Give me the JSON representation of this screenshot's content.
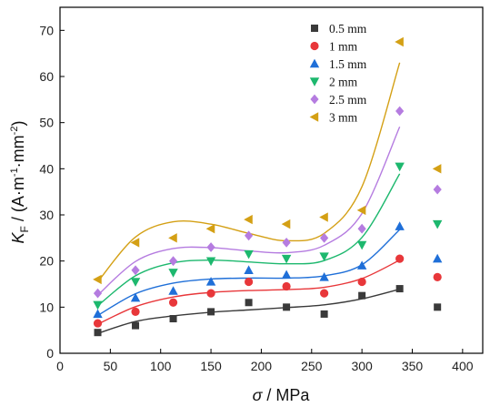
{
  "chart_data": {
    "type": "scatter",
    "xlabel_symbol": "σ",
    "xlabel_unit": " / MPa",
    "ylabel_symbol": "K",
    "ylabel_subscript": "F",
    "ylabel_unit": " / (A·m",
    "ylabel_exp1": "-1",
    "ylabel_mid": "·mm",
    "ylabel_exp2": "-2",
    "ylabel_close": ")",
    "xlim": [
      0,
      420
    ],
    "ylim": [
      0,
      75
    ],
    "xticks": [
      0,
      50,
      100,
      150,
      200,
      250,
      300,
      350,
      400
    ],
    "yticks": [
      0,
      10,
      20,
      30,
      40,
      50,
      60,
      70
    ],
    "legend_position": "top-right",
    "grid": false,
    "x": [
      37.5,
      75,
      112.5,
      150,
      187.5,
      225,
      262.5,
      300,
      337.5,
      375
    ],
    "series": [
      {
        "name": "0.5 mm",
        "marker": "square",
        "color": "#3a3a3a",
        "values": [
          4.5,
          6,
          7.5,
          9,
          11,
          10,
          8.5,
          12.5,
          14,
          10
        ],
        "fit": [
          [
            37.5,
            4.3
          ],
          [
            75,
            6.9
          ],
          [
            112.5,
            8.1
          ],
          [
            150,
            8.9
          ],
          [
            187.5,
            9.4
          ],
          [
            225,
            9.9
          ],
          [
            262.5,
            10.5
          ],
          [
            300,
            11.8
          ],
          [
            337.5,
            13.9
          ]
        ]
      },
      {
        "name": "1 mm",
        "marker": "circle",
        "color": "#e8373a",
        "values": [
          6.5,
          9,
          11,
          13,
          15.5,
          14.5,
          13,
          15.5,
          20.5,
          16.5
        ],
        "fit": [
          [
            37.5,
            6.3
          ],
          [
            75,
            10.1
          ],
          [
            112.5,
            12.2
          ],
          [
            150,
            13.2
          ],
          [
            187.5,
            13.6
          ],
          [
            225,
            13.8
          ],
          [
            262.5,
            14.3
          ],
          [
            300,
            16.2
          ],
          [
            337.5,
            20.2
          ]
        ]
      },
      {
        "name": "1.5 mm",
        "marker": "triangle-up",
        "color": "#1f6fd8",
        "values": [
          8.5,
          12,
          13.5,
          15.5,
          18,
          17,
          16.5,
          19,
          27.5,
          20.5
        ],
        "fit": [
          [
            37.5,
            8.2
          ],
          [
            75,
            12.9
          ],
          [
            112.5,
            15.2
          ],
          [
            150,
            16.1
          ],
          [
            187.5,
            16.3
          ],
          [
            225,
            16.3
          ],
          [
            262.5,
            16.8
          ],
          [
            300,
            19.2
          ],
          [
            337.5,
            26.8
          ]
        ]
      },
      {
        "name": "2 mm",
        "marker": "triangle-down",
        "color": "#1db86e",
        "values": [
          10.5,
          15.5,
          17.5,
          20,
          21.5,
          20.5,
          21,
          23.5,
          40.5,
          28
        ],
        "fit": [
          [
            37.5,
            10.3
          ],
          [
            75,
            16.8
          ],
          [
            112.5,
            19.6
          ],
          [
            150,
            20.2
          ],
          [
            187.5,
            19.8
          ],
          [
            225,
            19.4
          ],
          [
            262.5,
            20.1
          ],
          [
            300,
            25.1
          ],
          [
            337.5,
            38.9
          ]
        ]
      },
      {
        "name": "2.5 mm",
        "marker": "diamond",
        "color": "#b57ce0",
        "values": [
          13,
          18,
          20,
          23,
          25.5,
          24,
          25,
          27,
          52.5,
          35.5
        ],
        "fit": [
          [
            37.5,
            12.6
          ],
          [
            75,
            19.9
          ],
          [
            112.5,
            22.7
          ],
          [
            150,
            22.9
          ],
          [
            187.5,
            22.2
          ],
          [
            225,
            21.8
          ],
          [
            262.5,
            23.4
          ],
          [
            300,
            30.3
          ],
          [
            337.5,
            49.1
          ]
        ]
      },
      {
        "name": "3 mm",
        "marker": "triangle-left",
        "color": "#d4a015",
        "values": [
          16,
          24,
          25,
          27,
          29,
          28,
          29.5,
          31,
          67.5,
          40
        ],
        "fit": [
          [
            37.5,
            15.5
          ],
          [
            75,
            25.2
          ],
          [
            112.5,
            28.5
          ],
          [
            150,
            28
          ],
          [
            187.5,
            26
          ],
          [
            225,
            24.4
          ],
          [
            262.5,
            26
          ],
          [
            300,
            36.1
          ],
          [
            337.5,
            63
          ]
        ]
      }
    ]
  }
}
